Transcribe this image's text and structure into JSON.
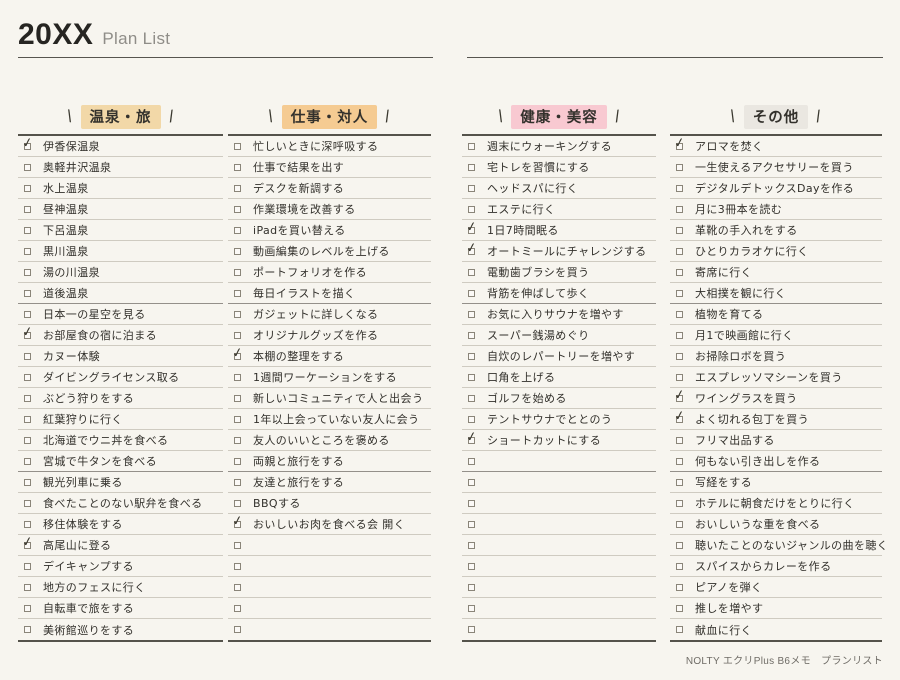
{
  "title": {
    "year": "20XX",
    "label": "Plan List"
  },
  "footer": "NOLTY エクリPlus B6メモ　プランリスト",
  "decor": {
    "slash_left": "\\",
    "slash_right": "/",
    "check_glyph": "✓"
  },
  "colors": {
    "background": "#f7f5ef",
    "line": "#cfcbc1",
    "ink": "#32302b"
  },
  "columns": [
    {
      "header": "温泉・旅",
      "highlight": "#f2d8a8",
      "items": [
        {
          "text": "伊香保温泉",
          "checked": true
        },
        {
          "text": "奥軽井沢温泉",
          "checked": false
        },
        {
          "text": "水上温泉",
          "checked": false
        },
        {
          "text": "昼神温泉",
          "checked": false
        },
        {
          "text": "下呂温泉",
          "checked": false
        },
        {
          "text": "黒川温泉",
          "checked": false
        },
        {
          "text": "湯の川温泉",
          "checked": false
        },
        {
          "text": "道後温泉",
          "checked": false
        },
        {
          "text": "日本一の星空を見る",
          "checked": false
        },
        {
          "text": "お部屋食の宿に泊まる",
          "checked": true
        },
        {
          "text": "カヌー体験",
          "checked": false
        },
        {
          "text": "ダイビングライセンス取る",
          "checked": false
        },
        {
          "text": "ぶどう狩りをする",
          "checked": false
        },
        {
          "text": "紅葉狩りに行く",
          "checked": false
        },
        {
          "text": "北海道でウニ丼を食べる",
          "checked": false
        },
        {
          "text": "宮城で牛タンを食べる",
          "checked": false
        },
        {
          "text": "観光列車に乗る",
          "checked": false
        },
        {
          "text": "食べたことのない駅弁を食べる",
          "checked": false
        },
        {
          "text": "移住体験をする",
          "checked": false
        },
        {
          "text": "高尾山に登る",
          "checked": true
        },
        {
          "text": "デイキャンプする",
          "checked": false
        },
        {
          "text": "地方のフェスに行く",
          "checked": false
        },
        {
          "text": "自転車で旅をする",
          "checked": false
        },
        {
          "text": "美術館巡りをする",
          "checked": false
        }
      ]
    },
    {
      "header": "仕事・対人",
      "highlight": "#f5cb92",
      "items": [
        {
          "text": "忙しいときに深呼吸する",
          "checked": false
        },
        {
          "text": "仕事で結果を出す",
          "checked": false
        },
        {
          "text": "デスクを新調する",
          "checked": false
        },
        {
          "text": "作業環境を改善する",
          "checked": false
        },
        {
          "text": "iPadを買い替える",
          "checked": false
        },
        {
          "text": "動画編集のレベルを上げる",
          "checked": false
        },
        {
          "text": "ポートフォリオを作る",
          "checked": false
        },
        {
          "text": "毎日イラストを描く",
          "checked": false
        },
        {
          "text": "ガジェットに詳しくなる",
          "checked": false
        },
        {
          "text": "オリジナルグッズを作る",
          "checked": false
        },
        {
          "text": "本棚の整理をする",
          "checked": true
        },
        {
          "text": "1週間ワーケーションをする",
          "checked": false
        },
        {
          "text": "新しいコミュニティで人と出会う",
          "checked": false
        },
        {
          "text": "1年以上会っていない友人に会う",
          "checked": false
        },
        {
          "text": "友人のいいところを褒める",
          "checked": false
        },
        {
          "text": "両親と旅行をする",
          "checked": false
        },
        {
          "text": "友達と旅行をする",
          "checked": false
        },
        {
          "text": "BBQする",
          "checked": false
        },
        {
          "text": "おいしいお肉を食べる会 開く",
          "checked": true
        },
        {
          "text": "",
          "checked": false
        },
        {
          "text": "",
          "checked": false
        },
        {
          "text": "",
          "checked": false
        },
        {
          "text": "",
          "checked": false
        },
        {
          "text": "",
          "checked": false
        }
      ]
    },
    {
      "header": "健康・美容",
      "highlight": "#f8c9d1",
      "items": [
        {
          "text": "週末にウォーキングする",
          "checked": false
        },
        {
          "text": "宅トレを習慣にする",
          "checked": false
        },
        {
          "text": "ヘッドスパに行く",
          "checked": false
        },
        {
          "text": "エステに行く",
          "checked": false
        },
        {
          "text": "1日7時間眠る",
          "checked": true
        },
        {
          "text": "オートミールにチャレンジする",
          "checked": true
        },
        {
          "text": "電動歯ブラシを買う",
          "checked": false
        },
        {
          "text": "背筋を伸ばして歩く",
          "checked": false
        },
        {
          "text": "お気に入りサウナを増やす",
          "checked": false
        },
        {
          "text": "スーパー銭湯めぐり",
          "checked": false
        },
        {
          "text": "自炊のレパートリーを増やす",
          "checked": false
        },
        {
          "text": "口角を上げる",
          "checked": false
        },
        {
          "text": "ゴルフを始める",
          "checked": false
        },
        {
          "text": "テントサウナでととのう",
          "checked": false
        },
        {
          "text": "ショートカットにする",
          "checked": true
        },
        {
          "text": "",
          "checked": false
        },
        {
          "text": "",
          "checked": false
        },
        {
          "text": "",
          "checked": false
        },
        {
          "text": "",
          "checked": false
        },
        {
          "text": "",
          "checked": false
        },
        {
          "text": "",
          "checked": false
        },
        {
          "text": "",
          "checked": false
        },
        {
          "text": "",
          "checked": false
        },
        {
          "text": "",
          "checked": false
        }
      ]
    },
    {
      "header": "その他",
      "highlight": "#eae7e1",
      "items": [
        {
          "text": "アロマを焚く",
          "checked": true
        },
        {
          "text": "一生使えるアクセサリーを買う",
          "checked": false
        },
        {
          "text": "デジタルデトックスDayを作る",
          "checked": false
        },
        {
          "text": "月に3冊本を読む",
          "checked": false
        },
        {
          "text": "革靴の手入れをする",
          "checked": false
        },
        {
          "text": "ひとりカラオケに行く",
          "checked": false
        },
        {
          "text": "寄席に行く",
          "checked": false
        },
        {
          "text": "大相撲を観に行く",
          "checked": false
        },
        {
          "text": "植物を育てる",
          "checked": false
        },
        {
          "text": "月1で映画館に行く",
          "checked": false
        },
        {
          "text": "お掃除ロボを買う",
          "checked": false
        },
        {
          "text": "エスプレッソマシーンを買う",
          "checked": false
        },
        {
          "text": "ワイングラスを買う",
          "checked": true
        },
        {
          "text": "よく切れる包丁を買う",
          "checked": true
        },
        {
          "text": "フリマ出品する",
          "checked": false
        },
        {
          "text": "何もない引き出しを作る",
          "checked": false
        },
        {
          "text": "写経をする",
          "checked": false
        },
        {
          "text": "ホテルに朝食だけをとりに行く",
          "checked": false
        },
        {
          "text": "おいしいうな重を食べる",
          "checked": false
        },
        {
          "text": "聴いたことのないジャンルの曲を聴く",
          "checked": false
        },
        {
          "text": "スパイスからカレーを作る",
          "checked": false
        },
        {
          "text": "ピアノを弾く",
          "checked": false
        },
        {
          "text": "推しを増やす",
          "checked": false
        },
        {
          "text": "献血に行く",
          "checked": false
        }
      ]
    }
  ]
}
